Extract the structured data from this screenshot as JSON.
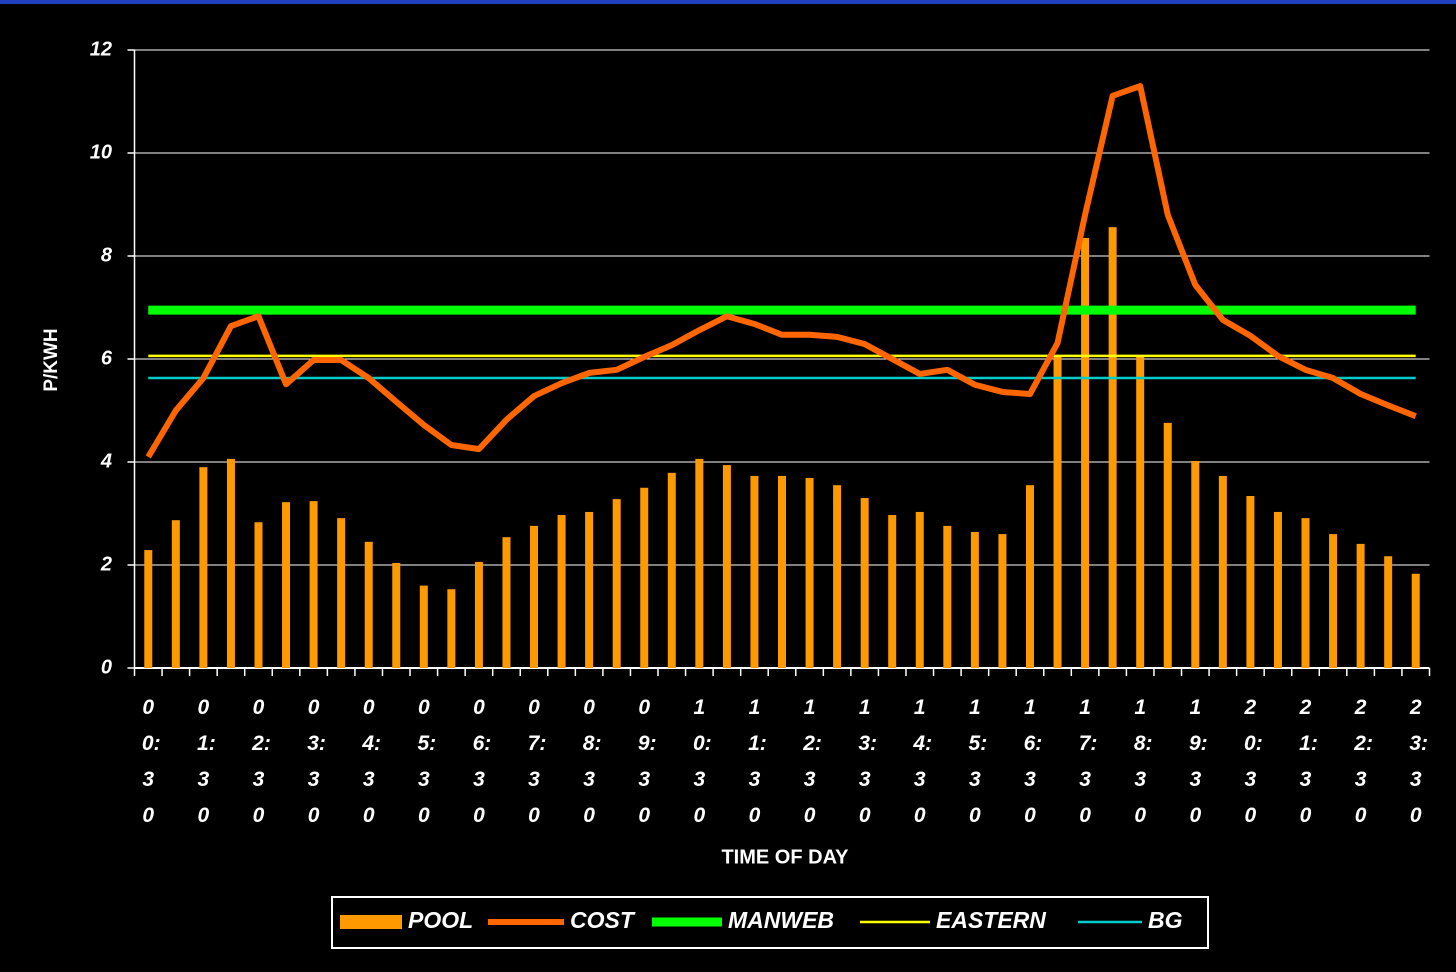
{
  "chart_data": {
    "type": "bar_line",
    "ylabel": "P/KWH",
    "xlabel": "TIME OF DAY",
    "categories": [
      "00:30",
      null,
      "01:30",
      null,
      "02:30",
      null,
      "03:30",
      null,
      "04:30",
      null,
      "05:30",
      null,
      "06:30",
      null,
      "07:30",
      null,
      "08:30",
      null,
      "09:30",
      null,
      "10:30",
      null,
      "11:30",
      null,
      "12:30",
      null,
      "13:30",
      null,
      "14:30",
      null,
      "15:30",
      null,
      "16:30",
      null,
      "17:30",
      null,
      "18:30",
      null,
      "19:30",
      null,
      "20:30",
      null,
      "21:30",
      null,
      "22:30",
      null,
      "23:30"
    ],
    "ylim": [
      0,
      12
    ],
    "yticks": [
      0,
      2,
      4,
      6,
      8,
      10,
      12
    ],
    "grid": true,
    "series": [
      {
        "name": "POOL",
        "kind": "bar",
        "color": "#ff9900",
        "values": [
          2.29,
          2.87,
          3.9,
          4.06,
          2.83,
          3.22,
          3.24,
          2.91,
          2.45,
          2.04,
          1.6,
          1.53,
          2.06,
          2.54,
          2.76,
          2.97,
          3.03,
          3.28,
          3.5,
          3.79,
          4.06,
          3.94,
          3.73,
          3.73,
          3.69,
          3.55,
          3.3,
          2.97,
          3.03,
          2.76,
          2.64,
          2.6,
          3.55,
          6.08,
          8.35,
          8.56,
          6.08,
          4.76,
          4.02,
          3.73,
          3.34,
          3.03,
          2.91,
          2.6,
          2.41,
          2.17,
          1.83
        ]
      },
      {
        "name": "COST",
        "kind": "line",
        "color": "#ff6600",
        "values": [
          4.1,
          5.0,
          5.63,
          6.64,
          6.83,
          5.51,
          5.98,
          5.98,
          5.63,
          5.17,
          4.72,
          4.33,
          4.25,
          4.82,
          5.28,
          5.53,
          5.73,
          5.79,
          6.04,
          6.27,
          6.56,
          6.83,
          6.68,
          6.47,
          6.47,
          6.43,
          6.29,
          6.0,
          5.71,
          5.79,
          5.5,
          5.36,
          5.32,
          6.31,
          8.8,
          11.11,
          11.3,
          8.8,
          7.44,
          6.76,
          6.45,
          6.06,
          5.79,
          5.63,
          5.32,
          5.1,
          4.89
        ]
      },
      {
        "name": "MANWEB",
        "kind": "hline",
        "color": "#00ff00",
        "value": 6.95
      },
      {
        "name": "EASTERN",
        "kind": "hline",
        "color": "#ffff00",
        "value": 6.06
      },
      {
        "name": "BG",
        "kind": "hline",
        "color": "#00cccc",
        "value": 5.63
      }
    ]
  }
}
